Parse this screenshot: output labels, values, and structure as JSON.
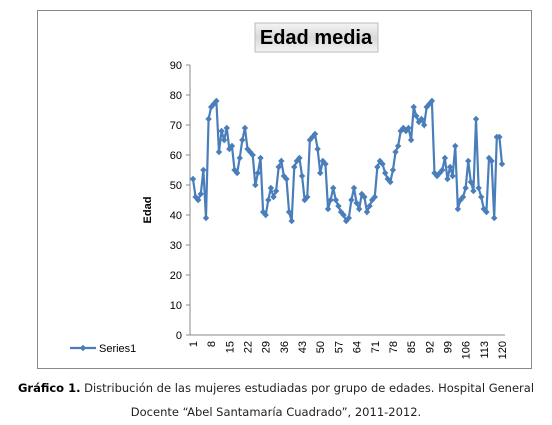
{
  "chart_data": {
    "type": "line",
    "title": "Edad media",
    "y_label": "Edad",
    "categories": [
      1,
      null,
      null,
      null,
      null,
      null,
      null,
      8,
      null,
      null,
      null,
      null,
      null,
      null,
      15,
      null,
      null,
      null,
      null,
      null,
      null,
      22,
      null,
      null,
      null,
      null,
      null,
      null,
      29,
      null,
      null,
      null,
      null,
      null,
      null,
      36,
      null,
      null,
      null,
      null,
      null,
      null,
      43,
      null,
      null,
      null,
      null,
      null,
      null,
      50,
      null,
      null,
      null,
      null,
      null,
      null,
      57,
      null,
      null,
      null,
      null,
      null,
      null,
      64,
      null,
      null,
      null,
      null,
      null,
      null,
      71,
      null,
      null,
      null,
      null,
      null,
      null,
      78,
      null,
      null,
      null,
      null,
      null,
      null,
      85,
      null,
      null,
      null,
      null,
      null,
      null,
      92,
      null,
      null,
      null,
      null,
      null,
      null,
      99,
      null,
      null,
      null,
      null,
      null,
      null,
      106,
      null,
      null,
      null,
      null,
      null,
      null,
      113,
      null,
      null,
      null,
      null,
      null,
      null,
      120
    ],
    "series": [
      {
        "name": "Series1",
        "color": "#4a7ebb",
        "values": [
          52,
          46,
          45,
          47,
          55,
          39,
          72,
          76,
          77,
          78,
          61,
          68,
          65,
          69,
          62,
          63,
          55,
          54,
          59,
          65,
          69,
          62,
          61,
          60,
          50,
          54,
          59,
          41,
          40,
          45,
          49,
          46,
          48,
          56,
          58,
          53,
          52,
          41,
          38,
          56,
          58,
          59,
          53,
          45,
          46,
          65,
          66,
          67,
          62,
          54,
          58,
          57,
          42,
          45,
          49,
          45,
          43,
          41,
          40,
          38,
          39,
          45,
          49,
          44,
          42,
          47,
          46,
          41,
          43,
          45,
          46,
          56,
          58,
          57,
          54,
          52,
          51,
          55,
          61,
          63,
          68,
          69,
          68,
          69,
          65,
          76,
          73,
          71,
          72,
          70,
          76,
          77,
          78,
          54,
          53,
          54,
          55,
          59,
          52,
          56,
          53,
          63,
          42,
          45,
          46,
          49,
          58,
          51,
          48,
          72,
          49,
          46,
          42,
          41,
          59,
          58,
          39,
          66,
          66,
          57
        ]
      }
    ],
    "ylim": [
      0,
      90
    ],
    "yticks": [
      0,
      10,
      20,
      30,
      40,
      50,
      60,
      70,
      80,
      90
    ],
    "grid": false,
    "legend": "left"
  },
  "caption": {
    "label": "Gráfico 1.",
    "text": "Distribución de las mujeres estudiadas por grupo de edades. Hospital General Docente “Abel Santamaría Cuadrado”, 2011-2012."
  }
}
